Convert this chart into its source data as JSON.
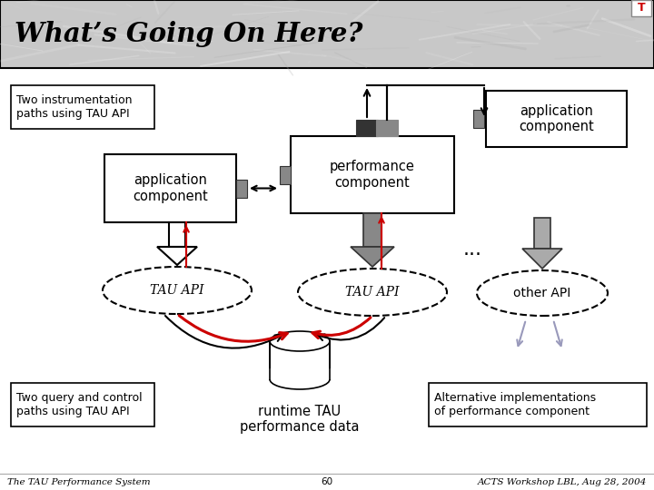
{
  "title": "What’s Going On Here?",
  "footer_text_left": "The TAU Performance System",
  "footer_text_center": "60",
  "footer_text_right": "ACTS Workshop LBL, Aug 28, 2004",
  "label_two_inst": "Two instrumentation\npaths using TAU API",
  "label_two_query": "Two query and control\npaths using TAU API",
  "label_alt_impl": "Alternative implementations\nof performance component",
  "label_app_comp_top": "application\ncomponent",
  "label_app_comp_left": "application\ncomponent",
  "label_perf_comp": "performance\ncomponent",
  "label_tau_api_left": "TAU API",
  "label_tau_api_right": "TAU API",
  "label_other_api": "other API",
  "label_runtime": "runtime TAU\nperformance data",
  "label_dots": "...",
  "white": "#ffffff",
  "black": "#000000",
  "gray_dark": "#333333",
  "gray_med": "#888888",
  "gray_light": "#aaaaaa",
  "red": "#cc0000",
  "blue_light": "#9999bb",
  "header_bg": "#cccccc"
}
